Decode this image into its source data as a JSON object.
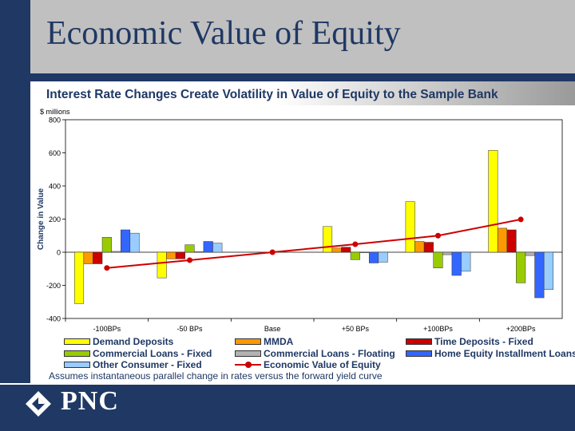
{
  "title": "Economic Value of Equity",
  "subtitle": "Interest Rate Changes Create Volatility in Value of Equity to the Sample Bank",
  "footnote": "Assumes instantaneous parallel change in rates versus the forward yield curve",
  "logo_text": "PNC",
  "chart_data": {
    "type": "bar",
    "categories": [
      "-100BPs",
      "-50 BPs",
      "Base",
      "+50 BPs",
      "+100BPs",
      "+200BPs"
    ],
    "unit_label": "$ millions",
    "ylabel": "Change in Value",
    "ylim": [
      -400,
      800
    ],
    "yticks": [
      -400,
      -200,
      0,
      200,
      400,
      600,
      800
    ],
    "series": [
      {
        "name": "Demand Deposits",
        "color": "#ffff00",
        "values": [
          -310,
          -155,
          0,
          155,
          305,
          615
        ]
      },
      {
        "name": "MMDA",
        "color": "#ff9900",
        "values": [
          -70,
          -40,
          0,
          25,
          65,
          145
        ]
      },
      {
        "name": "Time Deposits - Fixed",
        "color": "#cc0000",
        "values": [
          -70,
          -40,
          0,
          30,
          60,
          135
        ]
      },
      {
        "name": "Commercial Loans - Fixed",
        "color": "#99cc00",
        "values": [
          90,
          45,
          0,
          -45,
          -95,
          -185
        ]
      },
      {
        "name": "Commercial Loans - Floating",
        "color": "#b2b2b2",
        "values": [
          5,
          3,
          0,
          -3,
          -15,
          -20
        ]
      },
      {
        "name": "Home Equity Installment Loans",
        "color": "#3366ff",
        "values": [
          135,
          65,
          0,
          -65,
          -140,
          -275
        ]
      },
      {
        "name": "Other Consumer - Fixed",
        "color": "#99ccff",
        "values": [
          115,
          55,
          0,
          -60,
          -115,
          -225
        ]
      }
    ],
    "line_series": {
      "name": "Economic Value of Equity",
      "color": "#cc0000",
      "values": [
        -95,
        -48,
        0,
        48,
        100,
        198
      ]
    },
    "legend_position": "bottom",
    "grid": false
  }
}
